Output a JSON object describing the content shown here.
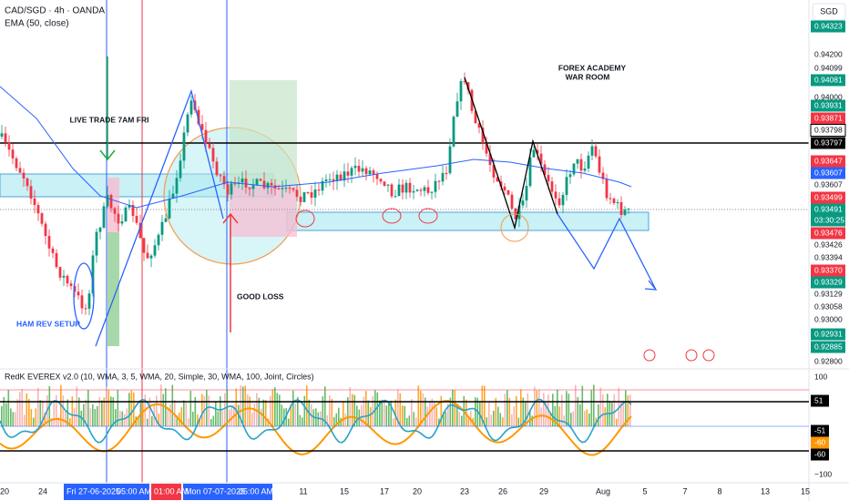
{
  "header": {
    "symbol": "CAD/SGD · 4h · OANDA",
    "indicator": "EMA (50, close)"
  },
  "price_axis": {
    "currency": "SGD",
    "labels": [
      "0.94323",
      "0.94200",
      "0.94099",
      "0.94081",
      "0.94000",
      "0.93931",
      "0.93871",
      "0.93798",
      "0.93797",
      "0.93647",
      "0.93607",
      "0.93607",
      "0.93499",
      "0.93491",
      "03:30:25",
      "0.93476",
      "0.93426",
      "0.93394",
      "0.93370",
      "0.93329",
      "0.93129",
      "0.93058",
      "0.93000",
      "0.92931",
      "0.92885",
      "0.92800"
    ]
  },
  "annotations": {
    "live_trade": "LIVE TRADE 7AM FRI",
    "ham_rev": "HAM REV SETUP",
    "good_loss": "GOOD LOSS",
    "academy": "FOREX ACADEMY",
    "war_room": "WAR ROOM"
  },
  "oscillator": {
    "title": "RedK EVEREX v2.0 (10, WMA, 3, 5, WMA, 20, Simple, 30, WMA, 100, Joint, Circles)",
    "axis_labels": [
      "100",
      "51",
      "-51",
      "-60",
      "-60",
      "−100"
    ]
  },
  "time_axis": {
    "labels": [
      "20",
      "24",
      "Fri 27-06-2025",
      "05:00 AM",
      "01:00 AM",
      "Mon 07-07-2025",
      "05:00 AM",
      "11",
      "15",
      "17",
      "20",
      "23",
      "26",
      "29",
      "Aug",
      "5",
      "7",
      "8",
      "13",
      "15"
    ]
  }
}
